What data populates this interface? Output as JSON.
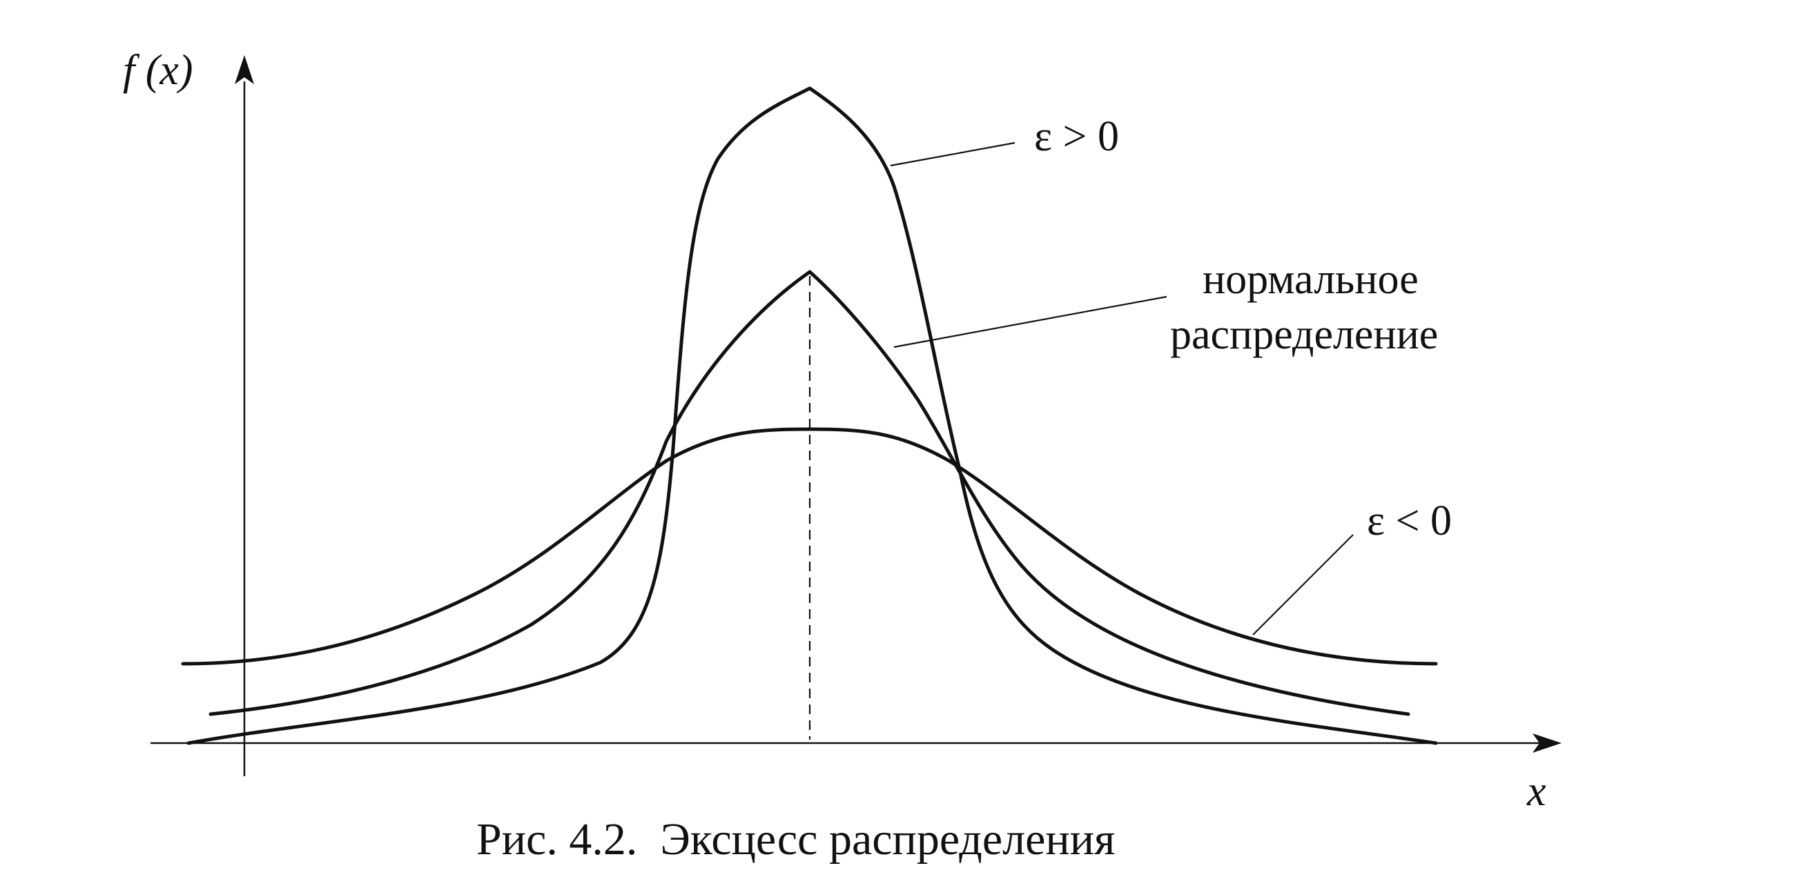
{
  "axes": {
    "y_label": "f (x)",
    "x_label": "x"
  },
  "curves": [
    {
      "label": "ε > 0"
    },
    {
      "label_lines": [
        "нормальное",
        "распределение"
      ]
    },
    {
      "label": "ε < 0"
    }
  ],
  "caption": "Рис. 4.2.  Эксцесс распределения"
}
